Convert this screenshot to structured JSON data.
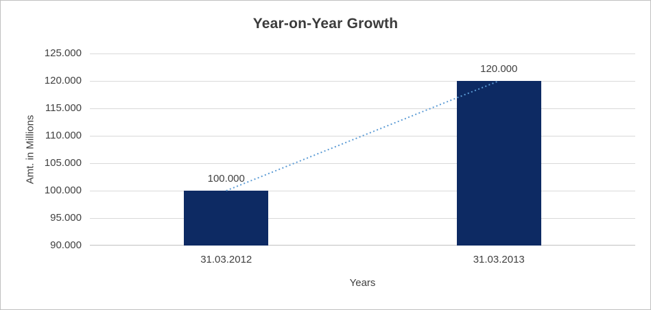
{
  "chart_data": {
    "type": "bar",
    "title": "Year-on-Year Growth",
    "categories": [
      "31.03.2012",
      "31.03.2013"
    ],
    "values": [
      100000,
      120000
    ],
    "value_labels": [
      "100.000",
      "120.000"
    ],
    "xlabel": "Years",
    "ylabel": "Amt. in Millions",
    "ylim": [
      90000,
      125000
    ],
    "yticks": [
      {
        "value": 90000,
        "label": "90.000"
      },
      {
        "value": 95000,
        "label": "95.000"
      },
      {
        "value": 100000,
        "label": "100.000"
      },
      {
        "value": 105000,
        "label": "105.000"
      },
      {
        "value": 110000,
        "label": "110.000"
      },
      {
        "value": 115000,
        "label": "115.000"
      },
      {
        "value": 120000,
        "label": "120.000"
      },
      {
        "value": 125000,
        "label": "125.000"
      }
    ],
    "grid": true,
    "legend": false,
    "trendline": {
      "from": 0,
      "to": 1,
      "style": "dotted",
      "color": "#5b9bd5"
    },
    "colors": {
      "bar": "#0d2a63",
      "grid": "#d9d9d9",
      "axis": "#bfbfbf",
      "text": "#404040",
      "border": "#bfbfbf"
    }
  }
}
